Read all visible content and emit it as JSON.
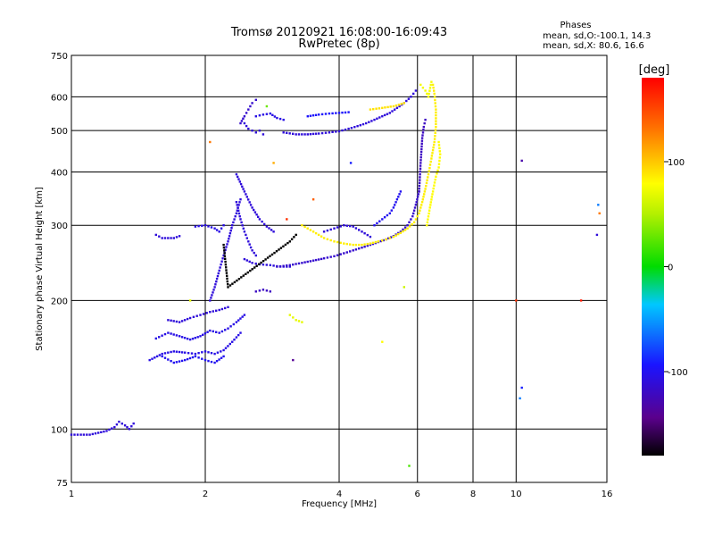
{
  "chart_data": {
    "type": "scatter",
    "title": "Tromsø 20120921 16:08:00-16:09:43",
    "subtitle": "RwPretec (8p)",
    "xlabel": "Frequency [MHz]",
    "ylabel": "Stationary phase Virtual Height [km]",
    "x_scale": "log",
    "y_scale": "log",
    "xlim": [
      1,
      16
    ],
    "ylim": [
      75,
      750
    ],
    "x_ticks": [
      "1",
      "2",
      "4",
      "6",
      "8",
      "10",
      "16"
    ],
    "x_tick_values": [
      1,
      2,
      4,
      6,
      8,
      10,
      16
    ],
    "y_ticks": [
      "75",
      "100",
      "200",
      "300",
      "400",
      "500",
      "600",
      "750"
    ],
    "y_tick_values": [
      75,
      100,
      200,
      300,
      400,
      500,
      600,
      750
    ],
    "grid": true,
    "colorbar": {
      "label": "[deg]",
      "range": [
        -180,
        180
      ],
      "ticks": [
        "100",
        "0",
        "-100"
      ],
      "tick_values": [
        100,
        0,
        -100
      ],
      "colormap": "rainbow"
    },
    "annotation": {
      "title": "Phases",
      "lines": [
        "mean, sd,O:-100.1, 14.3",
        "mean, sd,X:  80.6, 16.6"
      ]
    },
    "traces": [
      {
        "phase": -110,
        "points": [
          [
            1.0,
            97
          ],
          [
            1.05,
            97
          ],
          [
            1.1,
            97
          ],
          [
            1.15,
            98
          ],
          [
            1.2,
            99
          ],
          [
            1.25,
            101
          ],
          [
            1.28,
            104
          ],
          [
            1.32,
            102
          ],
          [
            1.35,
            100
          ],
          [
            1.38,
            103
          ]
        ]
      },
      {
        "phase": -105,
        "points": [
          [
            1.5,
            145
          ],
          [
            1.6,
            150
          ],
          [
            1.7,
            152
          ],
          [
            1.8,
            151
          ],
          [
            1.9,
            150
          ],
          [
            2.0,
            152
          ],
          [
            2.1,
            150
          ],
          [
            2.2,
            153
          ],
          [
            2.3,
            160
          ],
          [
            2.4,
            168
          ]
        ]
      },
      {
        "phase": -105,
        "points": [
          [
            1.55,
            163
          ],
          [
            1.65,
            168
          ],
          [
            1.75,
            165
          ],
          [
            1.85,
            162
          ],
          [
            1.95,
            165
          ],
          [
            2.05,
            170
          ],
          [
            2.15,
            168
          ],
          [
            2.25,
            172
          ],
          [
            2.35,
            178
          ],
          [
            2.45,
            185
          ]
        ]
      },
      {
        "phase": -100,
        "points": [
          [
            1.6,
            148
          ],
          [
            1.7,
            143
          ],
          [
            1.8,
            145
          ],
          [
            1.9,
            148
          ],
          [
            2.0,
            145
          ],
          [
            2.1,
            143
          ],
          [
            2.2,
            148
          ]
        ]
      },
      {
        "phase": -110,
        "points": [
          [
            1.65,
            180
          ],
          [
            1.75,
            178
          ],
          [
            1.85,
            182
          ],
          [
            1.95,
            185
          ],
          [
            2.05,
            188
          ],
          [
            2.15,
            190
          ],
          [
            2.25,
            193
          ]
        ]
      },
      {
        "phase": -110,
        "points": [
          [
            1.55,
            285
          ],
          [
            1.6,
            280
          ],
          [
            1.7,
            280
          ],
          [
            1.75,
            283
          ]
        ]
      },
      {
        "phase": -105,
        "points": [
          [
            1.9,
            298
          ],
          [
            2.0,
            300
          ],
          [
            2.1,
            295
          ],
          [
            2.15,
            290
          ],
          [
            2.2,
            300
          ]
        ]
      },
      {
        "phase": -110,
        "points": [
          [
            2.05,
            200
          ],
          [
            2.1,
            215
          ],
          [
            2.15,
            235
          ],
          [
            2.2,
            255
          ],
          [
            2.25,
            275
          ],
          [
            2.3,
            300
          ],
          [
            2.35,
            320
          ],
          [
            2.4,
            345
          ]
        ]
      },
      {
        "phase": -110,
        "points": [
          [
            2.35,
            340
          ],
          [
            2.4,
            310
          ],
          [
            2.45,
            290
          ],
          [
            2.5,
            275
          ],
          [
            2.55,
            262
          ],
          [
            2.6,
            255
          ]
        ]
      },
      {
        "phase": -110,
        "points": [
          [
            2.35,
            395
          ],
          [
            2.45,
            360
          ],
          [
            2.55,
            330
          ],
          [
            2.65,
            310
          ],
          [
            2.75,
            298
          ],
          [
            2.85,
            290
          ]
        ]
      },
      {
        "phase": -110,
        "points": [
          [
            2.45,
            250
          ],
          [
            2.55,
            245
          ],
          [
            2.65,
            243
          ],
          [
            2.8,
            242
          ],
          [
            2.95,
            240
          ],
          [
            3.1,
            240
          ]
        ]
      },
      {
        "phase": -115,
        "points": [
          [
            2.4,
            520
          ],
          [
            2.45,
            540
          ],
          [
            2.5,
            560
          ],
          [
            2.55,
            580
          ],
          [
            2.6,
            590
          ]
        ]
      },
      {
        "phase": -110,
        "points": [
          [
            2.45,
            520
          ],
          [
            2.5,
            505
          ],
          [
            2.55,
            500
          ],
          [
            2.6,
            495
          ],
          [
            2.65,
            500
          ],
          [
            2.7,
            490
          ]
        ]
      },
      {
        "phase": -105,
        "points": [
          [
            2.6,
            540
          ],
          [
            2.7,
            545
          ],
          [
            2.8,
            548
          ],
          [
            2.9,
            535
          ],
          [
            3.0,
            530
          ]
        ]
      },
      {
        "phase": -110,
        "points": [
          [
            3.0,
            495
          ],
          [
            3.2,
            490
          ],
          [
            3.4,
            490
          ],
          [
            3.6,
            492
          ],
          [
            3.8,
            495
          ],
          [
            4.0,
            498
          ],
          [
            4.2,
            505
          ],
          [
            4.4,
            512
          ],
          [
            4.6,
            520
          ],
          [
            4.8,
            530
          ],
          [
            5.0,
            540
          ],
          [
            5.2,
            550
          ],
          [
            5.4,
            565
          ],
          [
            5.6,
            580
          ],
          [
            5.8,
            600
          ],
          [
            5.95,
            620
          ]
        ]
      },
      {
        "phase": -95,
        "points": [
          [
            3.4,
            540
          ],
          [
            3.6,
            545
          ],
          [
            3.8,
            548
          ],
          [
            4.0,
            550
          ],
          [
            4.2,
            552
          ]
        ]
      },
      {
        "phase": -120,
        "points": [
          [
            2.6,
            210
          ],
          [
            2.7,
            212
          ],
          [
            2.8,
            210
          ]
        ]
      },
      {
        "phase": -115,
        "points": [
          [
            2.9,
            240
          ],
          [
            3.1,
            242
          ],
          [
            3.3,
            245
          ],
          [
            3.5,
            248
          ],
          [
            3.7,
            251
          ],
          [
            3.9,
            254
          ],
          [
            4.1,
            258
          ],
          [
            4.3,
            262
          ],
          [
            4.5,
            266
          ],
          [
            4.7,
            270
          ],
          [
            4.9,
            274
          ],
          [
            5.1,
            278
          ],
          [
            5.3,
            283
          ],
          [
            5.5,
            290
          ],
          [
            5.7,
            300
          ],
          [
            5.85,
            315
          ],
          [
            5.95,
            335
          ],
          [
            6.05,
            360
          ]
        ]
      },
      {
        "phase": -120,
        "points": [
          [
            6.05,
            360
          ],
          [
            6.1,
            420
          ],
          [
            6.15,
            480
          ],
          [
            6.2,
            510
          ],
          [
            6.25,
            530
          ]
        ]
      },
      {
        "phase": -110,
        "points": [
          [
            3.7,
            290
          ],
          [
            3.9,
            295
          ],
          [
            4.1,
            300
          ],
          [
            4.3,
            298
          ],
          [
            4.5,
            290
          ],
          [
            4.7,
            282
          ]
        ]
      },
      {
        "phase": -100,
        "points": [
          [
            4.8,
            300
          ],
          [
            5.0,
            310
          ],
          [
            5.2,
            320
          ],
          [
            5.3,
            330
          ],
          [
            5.4,
            345
          ],
          [
            5.5,
            360
          ]
        ]
      },
      {
        "phase": 85,
        "points": [
          [
            3.3,
            300
          ],
          [
            3.5,
            290
          ],
          [
            3.7,
            280
          ],
          [
            3.9,
            275
          ],
          [
            4.1,
            272
          ],
          [
            4.3,
            270
          ],
          [
            4.5,
            270
          ],
          [
            4.7,
            272
          ],
          [
            4.9,
            275
          ],
          [
            5.1,
            278
          ],
          [
            5.3,
            282
          ],
          [
            5.5,
            288
          ],
          [
            5.7,
            295
          ],
          [
            5.9,
            305
          ],
          [
            6.05,
            320
          ],
          [
            6.15,
            340
          ],
          [
            6.25,
            365
          ],
          [
            6.35,
            395
          ],
          [
            6.45,
            430
          ],
          [
            6.55,
            470
          ],
          [
            6.6,
            510
          ],
          [
            6.6,
            560
          ],
          [
            6.55,
            610
          ],
          [
            6.5,
            640
          ]
        ]
      },
      {
        "phase": 80,
        "points": [
          [
            6.3,
            300
          ],
          [
            6.4,
            330
          ],
          [
            6.5,
            360
          ],
          [
            6.6,
            390
          ],
          [
            6.7,
            410
          ],
          [
            6.75,
            440
          ],
          [
            6.7,
            470
          ]
        ]
      },
      {
        "phase": 75,
        "points": [
          [
            6.1,
            640
          ],
          [
            6.25,
            620
          ],
          [
            6.35,
            600
          ],
          [
            6.45,
            650
          ]
        ]
      },
      {
        "phase": 90,
        "points": [
          [
            4.7,
            560
          ],
          [
            5.0,
            565
          ],
          [
            5.3,
            570
          ],
          [
            5.6,
            580
          ]
        ]
      },
      {
        "phase": 70,
        "points": [
          [
            3.1,
            185
          ],
          [
            3.2,
            180
          ],
          [
            3.3,
            178
          ]
        ]
      },
      {
        "phase": -180,
        "points": [
          [
            2.2,
            270
          ],
          [
            2.25,
            215
          ],
          [
            3.1,
            275
          ],
          [
            3.2,
            285
          ]
        ]
      }
    ],
    "scatter_points": [
      {
        "x": 2.05,
        "y": 470,
        "phase": 130
      },
      {
        "x": 3.5,
        "y": 345,
        "phase": 140
      },
      {
        "x": 2.85,
        "y": 420,
        "phase": 110
      },
      {
        "x": 4.25,
        "y": 420,
        "phase": -90
      },
      {
        "x": 5.0,
        "y": 160,
        "phase": 80
      },
      {
        "x": 5.6,
        "y": 215,
        "phase": 60
      },
      {
        "x": 5.75,
        "y": 82,
        "phase": 20
      },
      {
        "x": 3.15,
        "y": 145,
        "phase": -140
      },
      {
        "x": 10.3,
        "y": 425,
        "phase": -130
      },
      {
        "x": 10.3,
        "y": 125,
        "phase": -90
      },
      {
        "x": 10.2,
        "y": 118,
        "phase": -60
      },
      {
        "x": 10.0,
        "y": 200,
        "phase": 160
      },
      {
        "x": 14.0,
        "y": 200,
        "phase": 170
      },
      {
        "x": 15.3,
        "y": 335,
        "phase": -60
      },
      {
        "x": 15.4,
        "y": 320,
        "phase": 130
      },
      {
        "x": 15.2,
        "y": 285,
        "phase": -110
      },
      {
        "x": 1.85,
        "y": 200,
        "phase": 70
      },
      {
        "x": 2.75,
        "y": 570,
        "phase": 30
      },
      {
        "x": 3.05,
        "y": 310,
        "phase": 160
      }
    ]
  }
}
